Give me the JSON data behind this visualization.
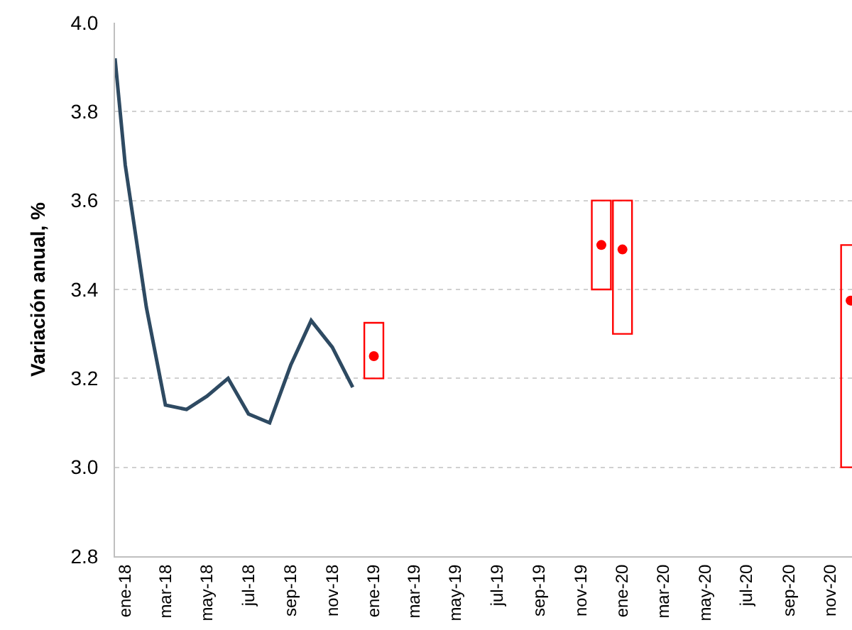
{
  "chart_data": {
    "type": "line",
    "ylabel": "Variación anual, %",
    "xlim": [
      "2017-12-17",
      "2020-12-03"
    ],
    "xticks": [
      {
        "value": "2018-01",
        "label": "ene-18"
      },
      {
        "value": "2018-03",
        "label": "mar-18"
      },
      {
        "value": "2018-05",
        "label": "may-18"
      },
      {
        "value": "2018-07",
        "label": "jul-18"
      },
      {
        "value": "2018-09",
        "label": "sep-18"
      },
      {
        "value": "2018-11",
        "label": "nov-18"
      },
      {
        "value": "2019-01",
        "label": "ene-19"
      },
      {
        "value": "2019-03",
        "label": "mar-19"
      },
      {
        "value": "2019-05",
        "label": "may-19"
      },
      {
        "value": "2019-07",
        "label": "jul-19"
      },
      {
        "value": "2019-09",
        "label": "sep-19"
      },
      {
        "value": "2019-11",
        "label": "nov-19"
      },
      {
        "value": "2020-01",
        "label": "ene-20"
      },
      {
        "value": "2020-03",
        "label": "mar-20"
      },
      {
        "value": "2020-05",
        "label": "may-20"
      },
      {
        "value": "2020-07",
        "label": "jul-20"
      },
      {
        "value": "2020-09",
        "label": "sep-20"
      },
      {
        "value": "2020-11",
        "label": "nov-20"
      }
    ],
    "ylim": [
      2.8,
      4.0
    ],
    "yticks": [
      {
        "value": 2.8,
        "label": "2.8"
      },
      {
        "value": 3,
        "label": "3.0"
      },
      {
        "value": 3.2,
        "label": "3.2"
      },
      {
        "value": 3.4,
        "label": "3.4"
      },
      {
        "value": 3.6,
        "label": "3.6"
      },
      {
        "value": 3.8,
        "label": "3.8"
      },
      {
        "value": 4,
        "label": "4.0"
      }
    ],
    "grid": "y",
    "legend": false,
    "series": [
      {
        "color": "#2e4a62",
        "x": [
          "2017-12-17",
          "2018-01",
          "2018-02",
          "2018-03",
          "2018-04",
          "2018-05",
          "2018-06",
          "2018-07",
          "2018-08",
          "2018-09",
          "2018-10",
          "2018-11",
          "2018-12"
        ],
        "values": [
          3.92,
          3.68,
          3.36,
          3.14,
          3.13,
          3.16,
          3.2,
          3.12,
          3.1,
          3.23,
          3.33,
          3.27,
          3.18
        ]
      },
      {
        "type": "bar",
        "color": "#ff0000",
        "x": [
          "2019-01",
          "2019-12",
          "2020-01",
          "2020-12"
        ],
        "base": [
          3.2,
          3.4,
          3.3,
          3.0
        ],
        "values": [
          0.125,
          0.2,
          0.3,
          0.5
        ]
      },
      {
        "type": "scatter",
        "color": "#ff0000",
        "marker": "circle",
        "x": [
          "2019-01",
          "2019-12",
          "2020-01",
          "2020-12"
        ],
        "values": [
          3.25,
          3.5,
          3.49,
          3.375
        ]
      }
    ]
  }
}
